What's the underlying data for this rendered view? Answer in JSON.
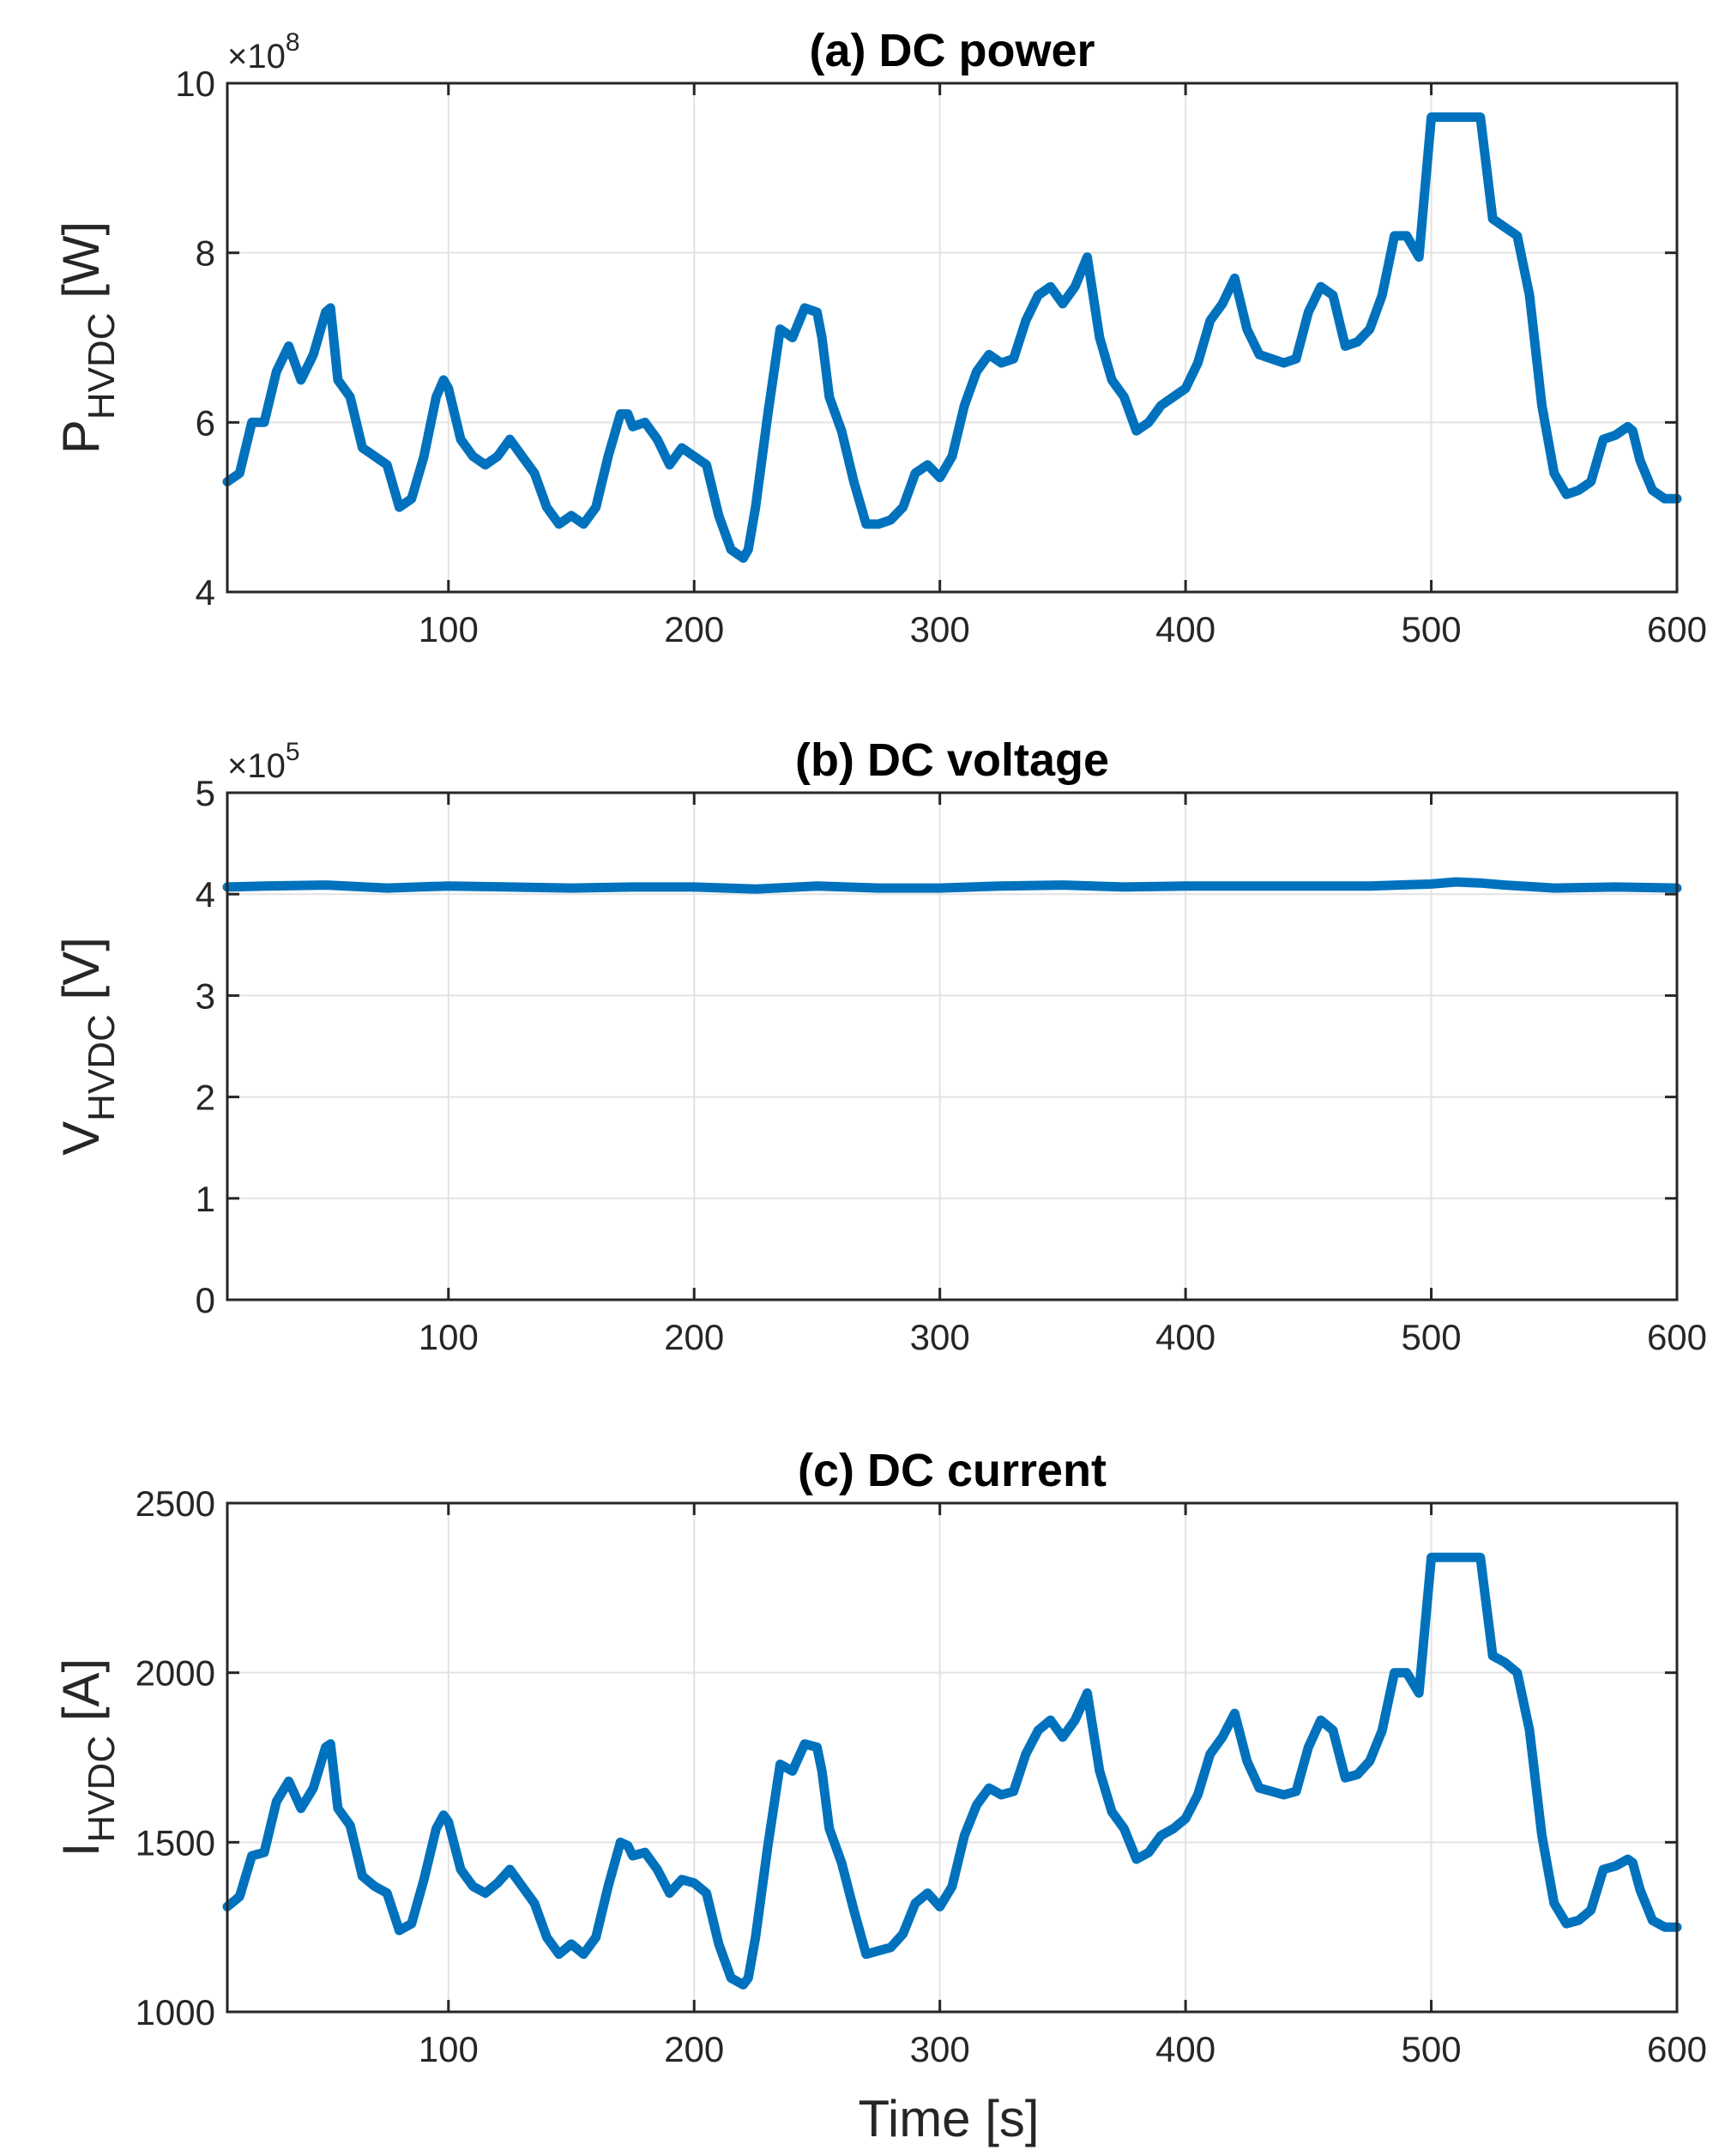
{
  "colors": {
    "series": "#0072BD",
    "axis": "#262626",
    "grid": "#e3e3e3"
  },
  "xlabel": "Time [s]",
  "chart_data": [
    {
      "type": "line",
      "title": "(a) DC power",
      "ylabel_main": "P",
      "ylabel_sub": "HVDC",
      "ylabel_unit": " [W]",
      "exponent_base": "×10",
      "exponent_power": "8",
      "xlim": [
        10,
        600
      ],
      "ylim": [
        4,
        10
      ],
      "xticks": [
        100,
        200,
        300,
        400,
        500,
        600
      ],
      "yticks": [
        4,
        6,
        8,
        10
      ],
      "grid": true,
      "series": [
        {
          "x": [
            10,
            15,
            20,
            25,
            30,
            35,
            40,
            45,
            50,
            52,
            55,
            60,
            65,
            70,
            75,
            80,
            85,
            90,
            95,
            98,
            100,
            105,
            110,
            115,
            120,
            125,
            130,
            135,
            140,
            145,
            150,
            155,
            160,
            165,
            170,
            173,
            175,
            180,
            185,
            190,
            195,
            200,
            205,
            210,
            215,
            220,
            222,
            225,
            230,
            235,
            240,
            245,
            250,
            252,
            255,
            260,
            265,
            270,
            275,
            280,
            285,
            290,
            295,
            300,
            305,
            310,
            315,
            320,
            325,
            330,
            335,
            340,
            345,
            350,
            355,
            360,
            365,
            370,
            375,
            380,
            385,
            390,
            395,
            400,
            405,
            410,
            415,
            420,
            425,
            430,
            435,
            440,
            445,
            450,
            455,
            460,
            465,
            470,
            475,
            480,
            485,
            490,
            495,
            500,
            505,
            510,
            515,
            520,
            525,
            530,
            535,
            540,
            545,
            550,
            555,
            560,
            565,
            570,
            575,
            580,
            582,
            585,
            590,
            595,
            600
          ],
          "y": [
            5.3,
            5.4,
            6.0,
            6.0,
            6.6,
            6.9,
            6.5,
            6.8,
            7.3,
            7.35,
            6.5,
            6.3,
            5.7,
            5.6,
            5.5,
            5.0,
            5.1,
            5.6,
            6.3,
            6.5,
            6.4,
            5.8,
            5.6,
            5.5,
            5.6,
            5.8,
            5.6,
            5.4,
            5.0,
            4.8,
            4.9,
            4.8,
            5.0,
            5.6,
            6.1,
            6.1,
            5.95,
            6.0,
            5.8,
            5.5,
            5.7,
            5.6,
            5.5,
            4.9,
            4.5,
            4.4,
            4.5,
            5.0,
            6.1,
            7.1,
            7.0,
            7.35,
            7.3,
            7.0,
            6.3,
            5.9,
            5.3,
            4.8,
            4.8,
            4.85,
            5.0,
            5.4,
            5.5,
            5.35,
            5.6,
            6.2,
            6.6,
            6.8,
            6.7,
            6.75,
            7.2,
            7.5,
            7.6,
            7.4,
            7.6,
            7.95,
            7.0,
            6.5,
            6.3,
            5.9,
            6.0,
            6.2,
            6.3,
            6.4,
            6.7,
            7.2,
            7.4,
            7.7,
            7.1,
            6.8,
            6.75,
            6.7,
            6.75,
            7.3,
            7.6,
            7.5,
            6.9,
            6.95,
            7.1,
            7.5,
            8.2,
            8.2,
            7.95,
            9.6,
            9.6,
            9.6,
            9.6,
            9.6,
            8.4,
            8.3,
            8.2,
            7.5,
            6.2,
            5.4,
            5.15,
            5.2,
            5.3,
            5.8,
            5.85,
            5.95,
            5.9,
            5.55,
            5.2,
            5.1,
            5.1
          ]
        }
      ]
    },
    {
      "type": "line",
      "title": "(b) DC voltage",
      "ylabel_main": "V",
      "ylabel_sub": "HVDC",
      "ylabel_unit": " [V]",
      "exponent_base": "×10",
      "exponent_power": "5",
      "xlim": [
        10,
        600
      ],
      "ylim": [
        0,
        5
      ],
      "xticks": [
        100,
        200,
        300,
        400,
        500,
        600
      ],
      "yticks": [
        0,
        1,
        2,
        3,
        4,
        5
      ],
      "grid": true,
      "series": [
        {
          "x": [
            10,
            25,
            50,
            75,
            100,
            125,
            150,
            175,
            200,
            225,
            250,
            275,
            300,
            325,
            350,
            375,
            400,
            425,
            450,
            475,
            500,
            510,
            520,
            530,
            550,
            575,
            600
          ],
          "y": [
            4.07,
            4.08,
            4.09,
            4.06,
            4.08,
            4.07,
            4.06,
            4.07,
            4.07,
            4.05,
            4.08,
            4.06,
            4.06,
            4.08,
            4.09,
            4.07,
            4.08,
            4.08,
            4.08,
            4.08,
            4.1,
            4.12,
            4.11,
            4.09,
            4.06,
            4.07,
            4.06
          ]
        }
      ]
    },
    {
      "type": "line",
      "title": "(c) DC current",
      "ylabel_main": "I",
      "ylabel_sub": "HVDC",
      "ylabel_unit": " [A]",
      "xlim": [
        10,
        600
      ],
      "ylim": [
        1000,
        2500
      ],
      "xticks": [
        100,
        200,
        300,
        400,
        500,
        600
      ],
      "yticks": [
        1000,
        1500,
        2000,
        2500
      ],
      "grid": true,
      "series": [
        {
          "x": [
            10,
            15,
            20,
            25,
            30,
            35,
            40,
            45,
            50,
            52,
            55,
            60,
            65,
            70,
            75,
            80,
            85,
            90,
            95,
            98,
            100,
            105,
            110,
            115,
            120,
            125,
            130,
            135,
            140,
            145,
            150,
            155,
            160,
            165,
            170,
            173,
            175,
            180,
            185,
            190,
            195,
            200,
            205,
            210,
            215,
            220,
            222,
            225,
            230,
            235,
            240,
            245,
            250,
            252,
            255,
            260,
            265,
            270,
            275,
            280,
            285,
            290,
            295,
            300,
            305,
            310,
            315,
            320,
            325,
            330,
            335,
            340,
            345,
            350,
            355,
            360,
            365,
            370,
            375,
            380,
            385,
            390,
            395,
            400,
            405,
            410,
            415,
            420,
            425,
            430,
            435,
            440,
            445,
            450,
            455,
            460,
            465,
            470,
            475,
            480,
            485,
            490,
            495,
            500,
            505,
            510,
            515,
            520,
            525,
            530,
            535,
            540,
            545,
            550,
            555,
            560,
            565,
            570,
            575,
            580,
            582,
            585,
            590,
            595,
            600
          ],
          "y": [
            1310,
            1340,
            1460,
            1470,
            1620,
            1680,
            1600,
            1660,
            1780,
            1790,
            1600,
            1550,
            1400,
            1370,
            1350,
            1240,
            1260,
            1390,
            1540,
            1580,
            1560,
            1420,
            1370,
            1350,
            1380,
            1420,
            1370,
            1320,
            1220,
            1170,
            1200,
            1170,
            1220,
            1370,
            1500,
            1490,
            1460,
            1470,
            1420,
            1350,
            1390,
            1380,
            1350,
            1200,
            1100,
            1080,
            1100,
            1220,
            1490,
            1730,
            1710,
            1790,
            1780,
            1710,
            1540,
            1440,
            1300,
            1170,
            1180,
            1190,
            1230,
            1320,
            1350,
            1310,
            1370,
            1520,
            1610,
            1660,
            1640,
            1650,
            1760,
            1830,
            1860,
            1810,
            1860,
            1940,
            1710,
            1590,
            1540,
            1450,
            1470,
            1520,
            1540,
            1570,
            1640,
            1760,
            1810,
            1880,
            1740,
            1660,
            1650,
            1640,
            1650,
            1780,
            1860,
            1830,
            1690,
            1700,
            1740,
            1830,
            2000,
            2000,
            1940,
            2340,
            2340,
            2340,
            2340,
            2340,
            2050,
            2030,
            2000,
            1830,
            1520,
            1320,
            1260,
            1270,
            1300,
            1420,
            1430,
            1450,
            1440,
            1360,
            1270,
            1250,
            1250
          ]
        }
      ]
    }
  ]
}
